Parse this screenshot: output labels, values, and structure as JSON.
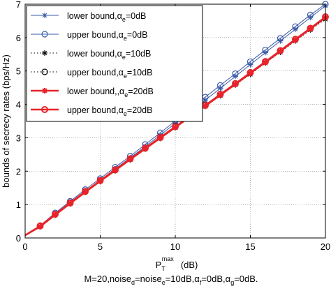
{
  "chart_data": {
    "type": "line",
    "xlabel_main": "P",
    "xlabel_sub": "T",
    "xlabel_sup": "max",
    "xlabel_unit": "(dB)",
    "ylabel": "bounds of secrecy rates (bps/Hz)",
    "xlim": [
      0,
      20
    ],
    "ylim": [
      0,
      7
    ],
    "xticks": [
      0,
      5,
      10,
      15,
      20
    ],
    "yticks": [
      0,
      1,
      2,
      3,
      4,
      5,
      6,
      7
    ],
    "grid": "dotted",
    "legend_position": "top-left",
    "caption_parts": [
      {
        "t": "M=20,noise",
        "sub": false
      },
      {
        "t": "d",
        "sub": true
      },
      {
        "t": "=noise",
        "sub": false
      },
      {
        "t": "e",
        "sub": true
      },
      {
        "t": "=10dB,",
        "sub": false
      },
      {
        "t": "α",
        "sub": false
      },
      {
        "t": "f",
        "sub": true
      },
      {
        "t": "=0dB,",
        "sub": false
      },
      {
        "t": "α",
        "sub": false
      },
      {
        "t": "g",
        "sub": true
      },
      {
        "t": "=0dB.",
        "sub": false
      }
    ],
    "x": [
      1,
      2,
      3,
      4,
      5,
      6,
      7,
      8,
      9,
      10,
      11,
      12,
      13,
      14,
      15,
      16,
      17,
      18,
      19,
      20
    ],
    "series": [
      {
        "legend_pre": "lower bound,",
        "legend_alpha": "α",
        "legend_sub": "e",
        "legend_post": "=0dB",
        "color": "#3a5aa8",
        "line": "solid",
        "marker": "asterisk",
        "width": 1,
        "y0": 0.08,
        "values": [
          0.35,
          0.7,
          1.05,
          1.4,
          1.73,
          2.07,
          2.4,
          2.74,
          3.08,
          3.43,
          3.78,
          4.13,
          4.48,
          4.84,
          5.19,
          5.55,
          5.9,
          6.25,
          6.6,
          6.95
        ]
      },
      {
        "legend_pre": "upper bound,",
        "legend_alpha": "α",
        "legend_sub": "e",
        "legend_post": "=0dB",
        "color": "#3a5aa8",
        "line": "solid",
        "marker": "circle",
        "width": 1,
        "y0": 0.08,
        "values": [
          0.37,
          0.75,
          1.1,
          1.45,
          1.78,
          2.12,
          2.45,
          2.8,
          3.15,
          3.5,
          3.87,
          4.22,
          4.57,
          4.92,
          5.28,
          5.63,
          5.98,
          6.33,
          6.68,
          7.0
        ]
      },
      {
        "legend_pre": "lower bound,",
        "legend_alpha": "α",
        "legend_sub": "e",
        "legend_post": "=10dB",
        "color": "#000000",
        "line": "dotted",
        "marker": "asterisk",
        "width": 1,
        "y0": 0.08,
        "values": [
          0.34,
          0.68,
          1.02,
          1.37,
          1.69,
          2.01,
          2.34,
          2.66,
          2.98,
          3.3,
          3.62,
          3.94,
          4.26,
          4.58,
          4.9,
          5.24,
          5.56,
          5.9,
          6.23,
          6.55
        ]
      },
      {
        "legend_pre": "upper bound,",
        "legend_alpha": "α",
        "legend_sub": "e",
        "legend_post": "=10dB",
        "color": "#000000",
        "line": "dotted",
        "marker": "circle",
        "width": 1,
        "y0": 0.08,
        "values": [
          0.37,
          0.71,
          1.06,
          1.4,
          1.73,
          2.05,
          2.37,
          2.7,
          3.02,
          3.35,
          3.67,
          3.99,
          4.31,
          4.63,
          4.96,
          5.29,
          5.61,
          5.95,
          6.28,
          6.62
        ]
      },
      {
        "legend_pre": "lower bound,,",
        "legend_alpha": "α",
        "legend_sub": "e",
        "legend_post": "=20dB",
        "color": "#e8232a",
        "line": "solid",
        "marker": "asterisk",
        "width": 2.4,
        "y0": 0.08,
        "values": [
          0.34,
          0.69,
          1.03,
          1.37,
          1.7,
          2.02,
          2.35,
          2.67,
          2.99,
          3.31,
          3.63,
          3.95,
          4.28,
          4.6,
          4.93,
          5.26,
          5.59,
          5.93,
          6.26,
          6.6
        ]
      },
      {
        "legend_pre": "upper bound,",
        "legend_alpha": "α",
        "legend_sub": "e",
        "legend_post": "=20dB",
        "color": "#e8232a",
        "line": "solid",
        "marker": "circle",
        "width": 2.4,
        "y0": 0.08,
        "values": [
          0.36,
          0.71,
          1.05,
          1.39,
          1.72,
          2.04,
          2.37,
          2.69,
          3.01,
          3.33,
          3.65,
          3.97,
          4.3,
          4.62,
          4.95,
          5.28,
          5.61,
          5.95,
          6.28,
          6.62
        ]
      }
    ]
  }
}
